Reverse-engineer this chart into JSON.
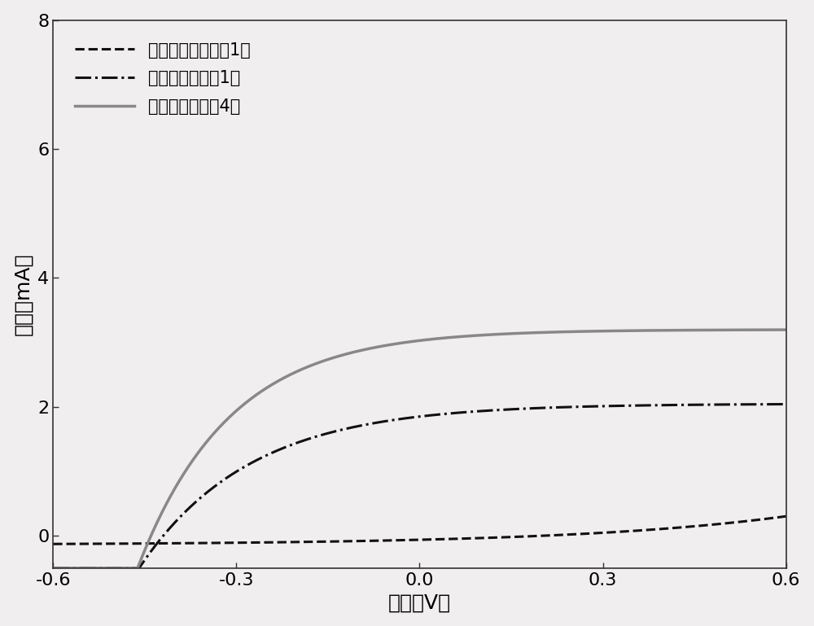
{
  "title": "",
  "xlabel": "电势（V）",
  "ylabel": "电流（mA）",
  "xlim": [
    -0.6,
    0.6
  ],
  "ylim": [
    -0.5,
    8
  ],
  "xticks": [
    -0.6,
    -0.3,
    0.0,
    0.3,
    0.6
  ],
  "yticks": [
    0,
    2,
    4,
    6,
    8
  ],
  "xtick_labels": [
    "-0.6",
    "-0.3",
    "0.0",
    "0.3",
    "0.6"
  ],
  "ytick_labels": [
    "0",
    "2",
    "4",
    "6",
    "8"
  ],
  "legend": [
    {
      "label": "不加光照（实施例1）",
      "color": "#111111",
      "linestyle": "--",
      "linewidth": 2.2
    },
    {
      "label": "加光照（实施例1）",
      "color": "#111111",
      "linestyle": "-.",
      "linewidth": 2.2
    },
    {
      "label": "加光照（实施例4）",
      "color": "#888888",
      "linestyle": "-",
      "linewidth": 2.5
    }
  ],
  "background_color": "#f0eeee",
  "font_size": 16,
  "label_font_size": 18,
  "legend_font_size": 15,
  "no_light_scale": 0.05,
  "light1_il": 2.05,
  "light1_vt": 0.115,
  "light4_il": 3.2,
  "light4_vt": 0.1
}
